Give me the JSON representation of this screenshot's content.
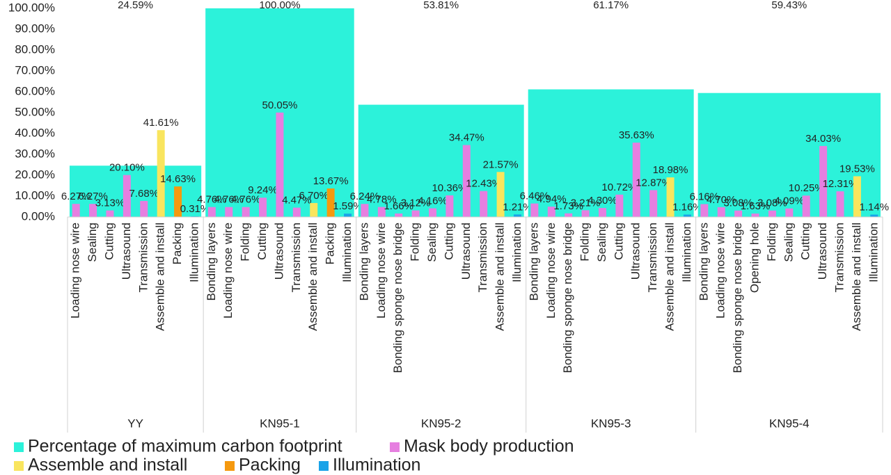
{
  "chart_data": {
    "type": "grouped-bar",
    "ylim": [
      0,
      100
    ],
    "yticks": [
      {
        "value": 0,
        "label": "0.00%"
      },
      {
        "value": 10,
        "label": "10.00%"
      },
      {
        "value": 20,
        "label": "20.00%"
      },
      {
        "value": 30,
        "label": "30.00%"
      },
      {
        "value": 40,
        "label": "40.00%"
      },
      {
        "value": 50,
        "label": "50.00%"
      },
      {
        "value": 60,
        "label": "60.00%"
      },
      {
        "value": 70,
        "label": "70.00%"
      },
      {
        "value": 80,
        "label": "80.00%"
      },
      {
        "value": 90,
        "label": "90.00%"
      },
      {
        "value": 100,
        "label": "100.00%"
      }
    ],
    "categories": [
      "YY",
      "KN95-1",
      "KN95-2",
      "KN95-3",
      "KN95-4"
    ],
    "series": [
      {
        "name": "Percentage of maximum carbon footprint",
        "color": "#2cf2da",
        "values": [
          24.59,
          100.0,
          53.81,
          61.17,
          59.43
        ],
        "value_labels": [
          "24.59%",
          "100.00%",
          "53.81%",
          "61.17%",
          "59.43%"
        ]
      },
      {
        "name": "Mask body production",
        "color": "#e67fe0"
      },
      {
        "name": "Assemble and install",
        "color": "#f9e55e"
      },
      {
        "name": "Packing",
        "color": "#f5990f"
      },
      {
        "name": "Illumination",
        "color": "#1aa3e8"
      }
    ],
    "groups": [
      {
        "categories": [
          "Loading nose wire",
          "Sealing",
          "Cutting",
          "Ultrasound",
          "Transmission",
          "Assemble and install",
          "Packing",
          "Illumination"
        ],
        "series": [
          {
            "values": [
              6.27,
              6.27,
              3.13,
              20.1,
              7.68,
              null,
              null,
              null
            ],
            "value_labels": [
              "6.27%",
              "6.27%",
              "3.13%",
              "20.10%",
              "7.68%",
              null,
              null,
              null
            ]
          },
          {
            "values": [
              null,
              null,
              null,
              null,
              null,
              41.61,
              null,
              null
            ],
            "value_labels": [
              null,
              null,
              null,
              null,
              null,
              "41.61%",
              null,
              null
            ]
          },
          {
            "values": [
              null,
              null,
              null,
              null,
              null,
              null,
              14.63,
              null
            ],
            "value_labels": [
              null,
              null,
              null,
              null,
              null,
              null,
              "14.63%",
              null
            ]
          },
          {
            "values": [
              null,
              null,
              null,
              null,
              null,
              null,
              null,
              0.31
            ],
            "value_labels": [
              null,
              null,
              null,
              null,
              null,
              null,
              null,
              "0.31%"
            ]
          }
        ]
      },
      {
        "categories": [
          "Bonding layers",
          "Loading nose wire",
          "Folding",
          "Cutting",
          "Ultrasound",
          "Transmission",
          "Assemble and install",
          "Packing",
          "Illumination"
        ],
        "series": [
          {
            "values": [
              4.76,
              4.76,
              4.76,
              9.24,
              50.05,
              4.47,
              null,
              null,
              null
            ],
            "value_labels": [
              "4.76%",
              "4.76%",
              "4.76%",
              "9.24%",
              "50.05%",
              "4.47%",
              null,
              null,
              null
            ]
          },
          {
            "values": [
              null,
              null,
              null,
              null,
              null,
              null,
              6.7,
              null,
              null
            ],
            "value_labels": [
              null,
              null,
              null,
              null,
              null,
              null,
              "6.70%",
              null,
              null
            ]
          },
          {
            "values": [
              null,
              null,
              null,
              null,
              null,
              null,
              null,
              13.67,
              null
            ],
            "value_labels": [
              null,
              null,
              null,
              null,
              null,
              null,
              null,
              "13.67%",
              null
            ]
          },
          {
            "values": [
              null,
              null,
              null,
              null,
              null,
              null,
              null,
              null,
              1.59
            ],
            "value_labels": [
              null,
              null,
              null,
              null,
              null,
              null,
              null,
              null,
              "1.59%"
            ]
          }
        ]
      },
      {
        "categories": [
          "Bonding layers",
          "Loading nose wire",
          "Bonding sponge nose bridge",
          "Folding",
          "Sealing",
          "Cutting",
          "Ultrasound",
          "Transmission",
          "Assemble and install",
          "Illumination"
        ],
        "series": [
          {
            "values": [
              6.24,
              4.78,
              1.66,
              3.12,
              4.16,
              10.36,
              34.47,
              12.43,
              null,
              null
            ],
            "value_labels": [
              "6.24%",
              "4.78%",
              "1.66%",
              "3.12%",
              "4.16%",
              "10.36%",
              "34.47%",
              "12.43%",
              null,
              null
            ]
          },
          {
            "values": [
              null,
              null,
              null,
              null,
              null,
              null,
              null,
              null,
              21.57,
              null
            ],
            "value_labels": [
              null,
              null,
              null,
              null,
              null,
              null,
              null,
              null,
              "21.57%",
              null
            ]
          },
          {
            "values": [
              null,
              null,
              null,
              null,
              null,
              null,
              null,
              null,
              null,
              null
            ],
            "value_labels": [
              null,
              null,
              null,
              null,
              null,
              null,
              null,
              null,
              null,
              null
            ]
          },
          {
            "values": [
              null,
              null,
              null,
              null,
              null,
              null,
              null,
              null,
              null,
              1.21
            ],
            "value_labels": [
              null,
              null,
              null,
              null,
              null,
              null,
              null,
              null,
              null,
              "1.21%"
            ]
          }
        ]
      },
      {
        "categories": [
          "Bonding layers",
          "Loading nose wire",
          "Bonding sponge nose bridge",
          "Folding",
          "Sealing",
          "Cutting",
          "Ultrasound",
          "Transmission",
          "Assemble and install",
          "Illumination"
        ],
        "series": [
          {
            "values": [
              6.46,
              4.94,
              1.73,
              3.21,
              4.3,
              10.72,
              35.63,
              12.87,
              null,
              null
            ],
            "value_labels": [
              "6.46%",
              "4.94%",
              "1.73%",
              "3.21%",
              "4.30%",
              "10.72%",
              "35.63%",
              "12.87%",
              null,
              null
            ]
          },
          {
            "values": [
              null,
              null,
              null,
              null,
              null,
              null,
              null,
              null,
              18.98,
              null
            ],
            "value_labels": [
              null,
              null,
              null,
              null,
              null,
              null,
              null,
              null,
              "18.98%",
              null
            ]
          },
          {
            "values": [
              null,
              null,
              null,
              null,
              null,
              null,
              null,
              null,
              null,
              null
            ],
            "value_labels": [
              null,
              null,
              null,
              null,
              null,
              null,
              null,
              null,
              null,
              null
            ]
          },
          {
            "values": [
              null,
              null,
              null,
              null,
              null,
              null,
              null,
              null,
              null,
              1.16
            ],
            "value_labels": [
              null,
              null,
              null,
              null,
              null,
              null,
              null,
              null,
              null,
              "1.16%"
            ]
          }
        ]
      },
      {
        "categories": [
          "Bonding layers",
          "Loading nose wire",
          "Bonding sponge nose bridge",
          "Opening hole",
          "Folding",
          "Sealing",
          "Cutting",
          "Ultrasound",
          "Transmission",
          "Assemble and install",
          "Illumination"
        ],
        "series": [
          {
            "values": [
              6.16,
              4.7,
              3.08,
              1.63,
              3.08,
              4.09,
              10.25,
              34.03,
              12.31,
              null,
              null
            ],
            "value_labels": [
              "6.16%",
              "4.70%",
              "3.08%",
              "1.63%",
              "3.08%",
              "4.09%",
              "10.25%",
              "34.03%",
              "12.31%",
              null,
              null
            ]
          },
          {
            "values": [
              null,
              null,
              null,
              null,
              null,
              null,
              null,
              null,
              null,
              19.53,
              null
            ],
            "value_labels": [
              null,
              null,
              null,
              null,
              null,
              null,
              null,
              null,
              null,
              "19.53%",
              null
            ]
          },
          {
            "values": [
              null,
              null,
              null,
              null,
              null,
              null,
              null,
              null,
              null,
              null,
              null
            ],
            "value_labels": [
              null,
              null,
              null,
              null,
              null,
              null,
              null,
              null,
              null,
              null,
              null
            ]
          },
          {
            "values": [
              null,
              null,
              null,
              null,
              null,
              null,
              null,
              null,
              null,
              null,
              1.14
            ],
            "value_labels": [
              null,
              null,
              null,
              null,
              null,
              null,
              null,
              null,
              null,
              null,
              "1.14%"
            ]
          }
        ]
      }
    ]
  }
}
